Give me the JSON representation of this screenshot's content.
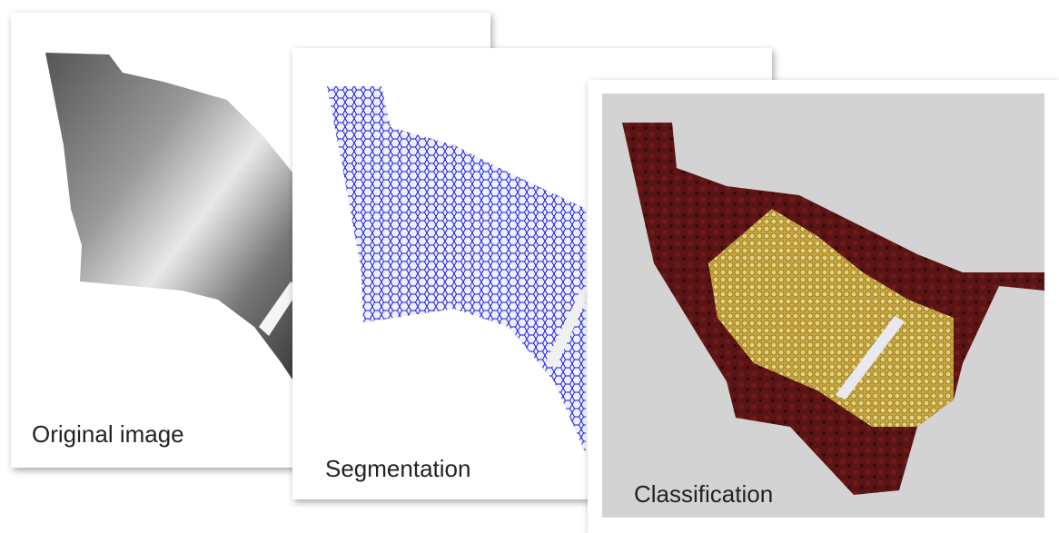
{
  "panels": [
    {
      "label": "Original image"
    },
    {
      "label": "Segmentation"
    },
    {
      "label": "Classification"
    }
  ]
}
